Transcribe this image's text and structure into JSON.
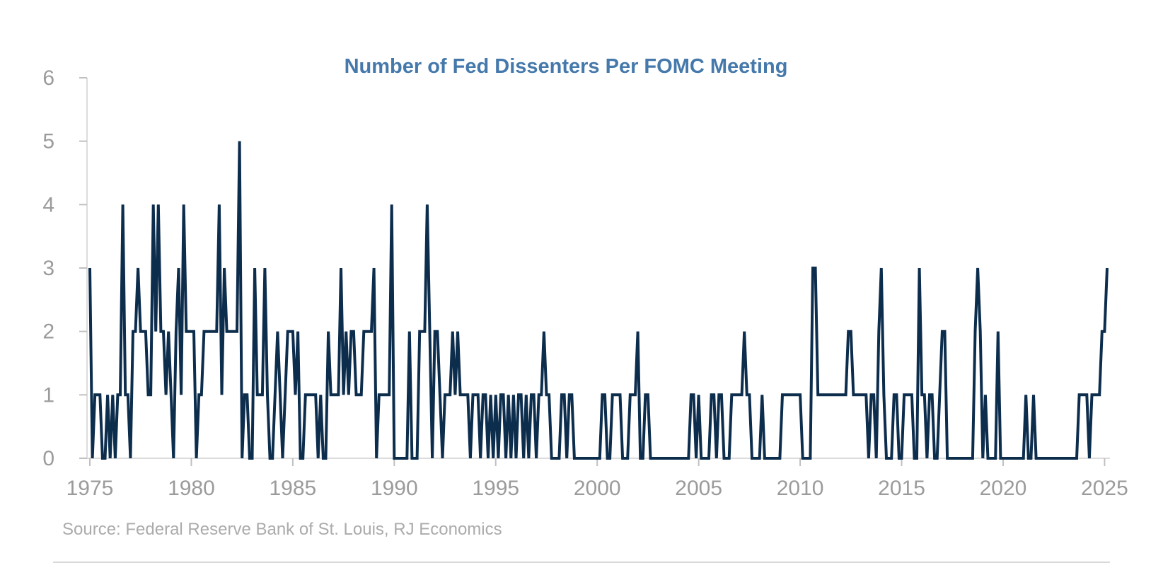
{
  "title": "Number of Fed Dissenters Per FOMC Meeting",
  "source": "Source: Federal Reserve Bank of St. Louis, RJ Economics",
  "colors": {
    "line": "#0d2d4d",
    "title": "#4579ab",
    "axis_line": "#dcdcdc",
    "tick_mark": "#c0c0c0",
    "axis_label": "#9b9b9b",
    "source_text": "#ababab",
    "footer_rule": "#d9d9d9",
    "background": "#ffffff"
  },
  "chart_data": {
    "type": "line",
    "title": "Number of Fed Dissenters Per FOMC Meeting",
    "series_name": "Dissenting votes per FOMC meeting",
    "x_start_year": 1975,
    "x_end_year": 2025,
    "points_per_year": 8,
    "x_ticks": [
      1975,
      1980,
      1985,
      1990,
      1995,
      2000,
      2005,
      2010,
      2015,
      2020,
      2025
    ],
    "y_ticks": [
      0,
      1,
      2,
      3,
      4,
      5,
      6
    ],
    "ylim": [
      0,
      6
    ],
    "grid": false,
    "legend": false,
    "values_by_year": [
      [
        3,
        0,
        1,
        1,
        1,
        0,
        0,
        1
      ],
      [
        0,
        1,
        0,
        1,
        1,
        4,
        1,
        1
      ],
      [
        0,
        2,
        2,
        3,
        2,
        2,
        2,
        1
      ],
      [
        1,
        4,
        2,
        4,
        2,
        2,
        1,
        2
      ],
      [
        1,
        0,
        2,
        3,
        1,
        4,
        2,
        2
      ],
      [
        2,
        2,
        0,
        1,
        1,
        2,
        2,
        2
      ],
      [
        2,
        2,
        2,
        4,
        1,
        3,
        2,
        2
      ],
      [
        2,
        2,
        2,
        5,
        0,
        1,
        1,
        0
      ],
      [
        0,
        3,
        1,
        1,
        1,
        3,
        1,
        0
      ],
      [
        0,
        1,
        2,
        1,
        0,
        1,
        2,
        2
      ],
      [
        2,
        1,
        2,
        0,
        0,
        1,
        1,
        1
      ],
      [
        1,
        1,
        0,
        1,
        0,
        0,
        2,
        1
      ],
      [
        1,
        1,
        1,
        3,
        1,
        2,
        1,
        2
      ],
      [
        2,
        1,
        1,
        1,
        2,
        2,
        2,
        2
      ],
      [
        3,
        0,
        1,
        1,
        1,
        1,
        1,
        4
      ],
      [
        0,
        0,
        0,
        0,
        0,
        0,
        2,
        0
      ],
      [
        0,
        0,
        2,
        2,
        2,
        4,
        2,
        0
      ],
      [
        2,
        2,
        1,
        0,
        1,
        1,
        1,
        2
      ],
      [
        1,
        2,
        1,
        1,
        1,
        1,
        0,
        1
      ],
      [
        1,
        1,
        0,
        1,
        1,
        0,
        1,
        0
      ],
      [
        1,
        0,
        1,
        1,
        0,
        1,
        0,
        1
      ],
      [
        0,
        1,
        1,
        0,
        1,
        0,
        1,
        1
      ],
      [
        0,
        1,
        1,
        2,
        1,
        1,
        0,
        0
      ],
      [
        0,
        0,
        1,
        1,
        0,
        1,
        1,
        0
      ],
      [
        0,
        0,
        0,
        0,
        0,
        0,
        0,
        0
      ],
      [
        0,
        0,
        1,
        1,
        0,
        0,
        1,
        1
      ],
      [
        1,
        1,
        0,
        0,
        0,
        1,
        1,
        1
      ],
      [
        2,
        0,
        0,
        1,
        1,
        0,
        0,
        0
      ],
      [
        0,
        0,
        0,
        0,
        0,
        0,
        0,
        0
      ],
      [
        0,
        0,
        0,
        0,
        0,
        1,
        1,
        0
      ],
      [
        1,
        0,
        0,
        0,
        0,
        1,
        1,
        0
      ],
      [
        1,
        1,
        0,
        0,
        0,
        1,
        1,
        1
      ],
      [
        1,
        1,
        2,
        1,
        1,
        0,
        0,
        0
      ],
      [
        0,
        1,
        0,
        0,
        0,
        0,
        0,
        0
      ],
      [
        0,
        1,
        1,
        1,
        1,
        1,
        1,
        1
      ],
      [
        1,
        0,
        0,
        0,
        0,
        3,
        3,
        1
      ],
      [
        1,
        1,
        1,
        1,
        1,
        1,
        1,
        1
      ],
      [
        1,
        1,
        1,
        2,
        2,
        1,
        1,
        1
      ],
      [
        1,
        1,
        1,
        0,
        1,
        1,
        0,
        2
      ],
      [
        3,
        1,
        0,
        0,
        0,
        1,
        1,
        0
      ],
      [
        0,
        1,
        1,
        1,
        1,
        0,
        0,
        3
      ],
      [
        1,
        1,
        0,
        1,
        1,
        0,
        0,
        1
      ],
      [
        2,
        2,
        0,
        0,
        0,
        0,
        0,
        0
      ],
      [
        0,
        0,
        0,
        0,
        0,
        2,
        3,
        2
      ],
      [
        0,
        1,
        0,
        0,
        0,
        0,
        2,
        0
      ],
      [
        0,
        0,
        0,
        0,
        0,
        0,
        0,
        0
      ],
      [
        0,
        1,
        0,
        0,
        1,
        0,
        0,
        0
      ],
      [
        0,
        0,
        0,
        0,
        0,
        0,
        0,
        0
      ],
      [
        0,
        0,
        0,
        0,
        0,
        0,
        1,
        1
      ],
      [
        1,
        1,
        0,
        1,
        1,
        1,
        1,
        2
      ],
      [
        2,
        3
      ]
    ]
  }
}
